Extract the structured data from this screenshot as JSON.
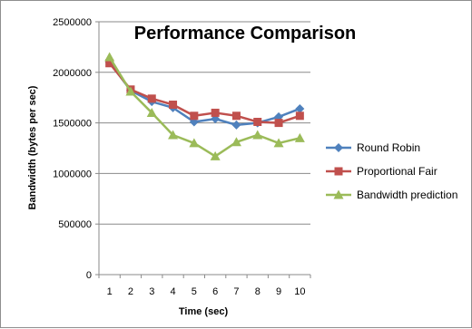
{
  "chart_data": {
    "type": "line",
    "title": "Performance Comparison",
    "xlabel": "Time (sec)",
    "ylabel": "Bandwidth  (bytes per sec)",
    "x": [
      1,
      2,
      3,
      4,
      5,
      6,
      7,
      8,
      9,
      10
    ],
    "xlim": [
      0.5,
      10.5
    ],
    "ylim": [
      0,
      2500000
    ],
    "yticks": [
      0,
      500000,
      1000000,
      1500000,
      2000000,
      2500000
    ],
    "grid": true,
    "legend_position": "right",
    "series": [
      {
        "name": "Round Robin",
        "color": "#4f81bd",
        "marker": "diamond",
        "values": [
          2100000,
          1820000,
          1710000,
          1650000,
          1510000,
          1540000,
          1480000,
          1500000,
          1560000,
          1640000
        ]
      },
      {
        "name": "Proportional Fair",
        "color": "#c0504d",
        "marker": "square",
        "values": [
          2090000,
          1830000,
          1740000,
          1680000,
          1570000,
          1600000,
          1570000,
          1510000,
          1500000,
          1570000
        ]
      },
      {
        "name": "Bandwidth prediction",
        "color": "#9bbb59",
        "marker": "triangle",
        "values": [
          2150000,
          1810000,
          1600000,
          1380000,
          1300000,
          1170000,
          1310000,
          1380000,
          1300000,
          1350000
        ]
      }
    ]
  }
}
